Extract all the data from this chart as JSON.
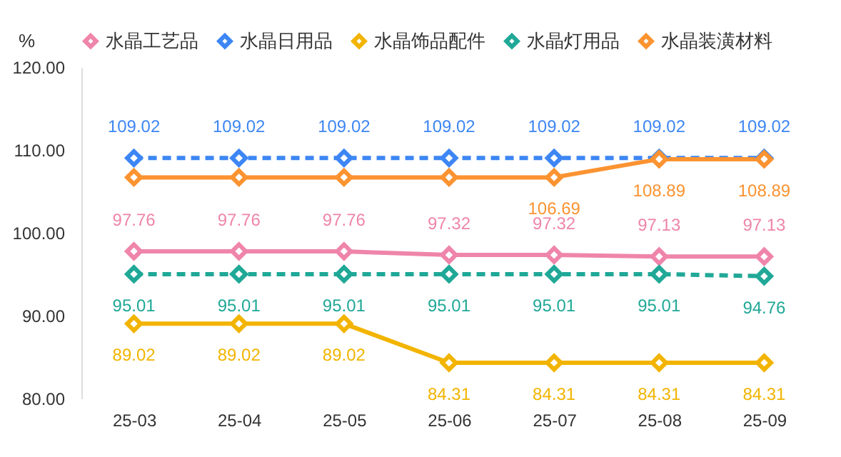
{
  "chart_data": {
    "type": "line",
    "ylabel": "%",
    "categories": [
      "25-03",
      "25-04",
      "25-05",
      "25-06",
      "25-07",
      "25-08",
      "25-09"
    ],
    "series": [
      {
        "name": "水晶工艺品",
        "color": "#ef85aa",
        "line_style": "solid",
        "values": [
          97.76,
          97.76,
          97.76,
          97.32,
          97.32,
          97.13,
          97.13
        ]
      },
      {
        "name": "水晶日用品",
        "color": "#3d86f4",
        "line_style": "dashed",
        "values": [
          109.02,
          109.02,
          109.02,
          109.02,
          109.02,
          109.02,
          109.02
        ]
      },
      {
        "name": "水晶饰品配件",
        "color": "#f2b400",
        "line_style": "solid",
        "values": [
          89.02,
          89.02,
          89.02,
          84.31,
          84.31,
          84.31,
          84.31
        ]
      },
      {
        "name": "水晶灯用品",
        "color": "#20a897",
        "line_style": "dashed",
        "values": [
          95.01,
          95.01,
          95.01,
          95.01,
          95.01,
          95.01,
          94.76
        ]
      },
      {
        "name": "水晶装潢材料",
        "color": "#fb9331",
        "line_style": "solid",
        "values": [
          106.69,
          106.69,
          106.69,
          106.69,
          106.69,
          108.89,
          108.89
        ],
        "value_labels": [
          null,
          null,
          null,
          null,
          "106.69",
          "108.89",
          "108.89"
        ]
      }
    ],
    "ylim": [
      80,
      120
    ],
    "yticks": [
      {
        "value": 80,
        "label": "80.00"
      },
      {
        "value": 90,
        "label": "90.00"
      },
      {
        "value": 100,
        "label": "100.00"
      },
      {
        "value": 110,
        "label": "110.00"
      },
      {
        "value": 120,
        "label": "120.00"
      }
    ],
    "grid": false,
    "legend": "top",
    "marker": "diamond",
    "data_labels": true
  }
}
